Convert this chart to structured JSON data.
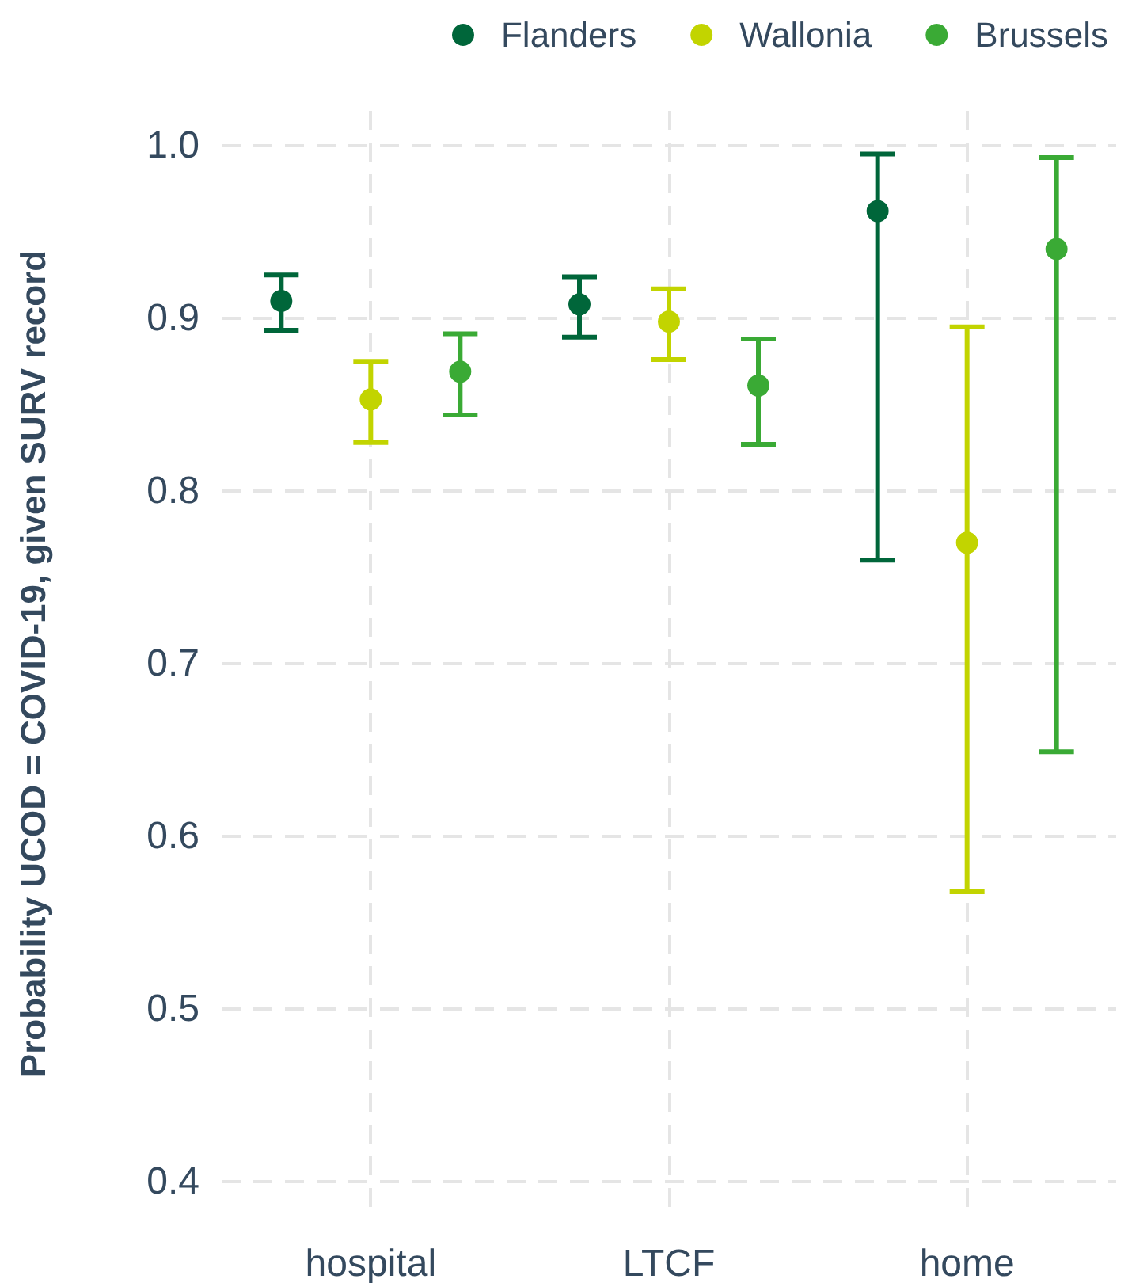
{
  "chart_data": {
    "type": "scatter",
    "ylabel": "Probability UCOD = COVID-19, given SURV record",
    "categories": [
      "hospital",
      "LTCF",
      "home"
    ],
    "series": [
      {
        "name": "Flanders",
        "color": "#00663a",
        "values": [
          0.91,
          0.908,
          0.962
        ],
        "errors": [
          [
            0.893,
            0.925
          ],
          [
            0.889,
            0.924
          ],
          [
            0.76,
            0.995
          ]
        ]
      },
      {
        "name": "Wallonia",
        "color": "#c2d400",
        "values": [
          0.853,
          0.898,
          0.77
        ],
        "errors": [
          [
            0.828,
            0.875
          ],
          [
            0.876,
            0.917
          ],
          [
            0.568,
            0.895
          ]
        ]
      },
      {
        "name": "Brussels",
        "color": "#3aaa35",
        "values": [
          0.869,
          0.861,
          0.94
        ],
        "errors": [
          [
            0.844,
            0.891
          ],
          [
            0.827,
            0.888
          ],
          [
            0.649,
            0.993
          ]
        ]
      }
    ],
    "ylim": [
      0.38,
      1.02
    ],
    "yticks": [
      {
        "value": 0.4,
        "label": "0.4"
      },
      {
        "value": 0.5,
        "label": "0.5"
      },
      {
        "value": 0.6,
        "label": "0.6"
      },
      {
        "value": 0.7,
        "label": "0.7"
      },
      {
        "value": 0.8,
        "label": "0.8"
      },
      {
        "value": 0.9,
        "label": "0.9"
      },
      {
        "value": 1.0,
        "label": "1.0"
      }
    ],
    "grid": true,
    "legend": "top right",
    "marker": "circle"
  }
}
